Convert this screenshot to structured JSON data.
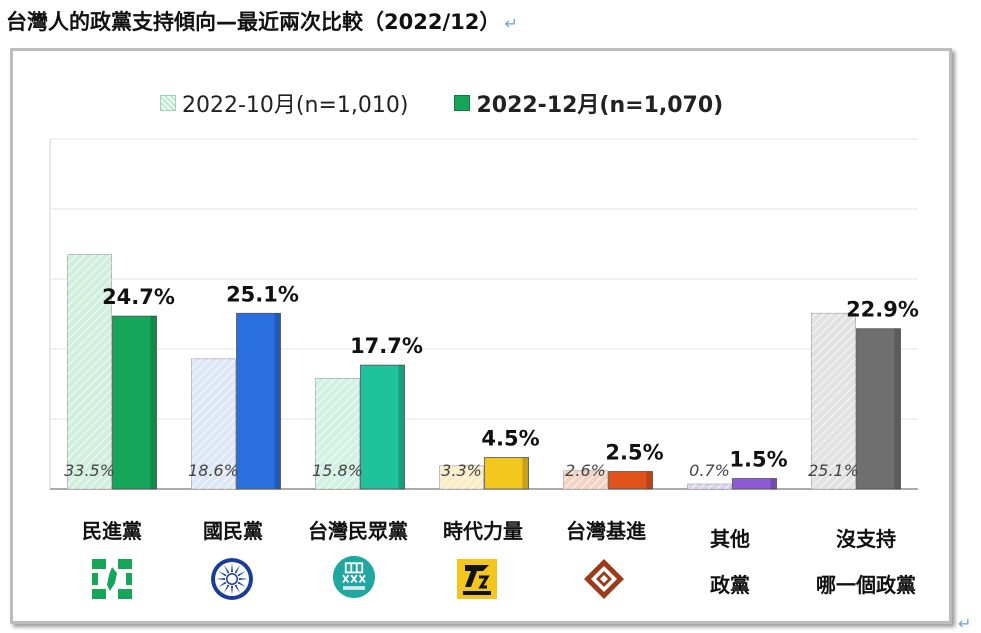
{
  "title": "台灣人的政黨支持傾向—最近兩次比較（2022/12）",
  "title_mark": "↵",
  "corner_mark": "↵",
  "chart_data": {
    "type": "bar",
    "title": "台灣人的政黨支持傾向—最近兩次比較（2022/12）",
    "xlabel": "",
    "ylabel": "",
    "ylim": [
      0,
      50
    ],
    "grid": true,
    "legend_position": "top",
    "categories": [
      "民進黨",
      "國民黨",
      "台灣民眾黨",
      "時代力量",
      "台灣基進",
      "其他政黨",
      "沒支持哪一個政黨"
    ],
    "category_lines": [
      [
        "民進黨"
      ],
      [
        "國民黨"
      ],
      [
        "台灣民眾黨"
      ],
      [
        "時代力量"
      ],
      [
        "台灣基進"
      ],
      [
        "其他",
        "政黨"
      ],
      [
        "沒支持",
        "哪一個政黨"
      ]
    ],
    "series": [
      {
        "name": "2022-10月(n=1,010)",
        "values": [
          33.5,
          18.6,
          15.8,
          3.3,
          2.6,
          0.7,
          25.1
        ],
        "labels": [
          "33.5%",
          "18.6%",
          "15.8%",
          "3.3%",
          "2.6%",
          "0.7%",
          "25.1%"
        ]
      },
      {
        "name": "2022-12月(n=1,070)",
        "values": [
          24.7,
          25.1,
          17.7,
          4.5,
          2.5,
          1.5,
          22.9
        ],
        "labels": [
          "24.7%",
          "25.1%",
          "17.7%",
          "4.5%",
          "2.5%",
          "1.5%",
          "22.9%"
        ]
      }
    ],
    "colors": {
      "oct": [
        "#b9e6cc",
        "#c9d9ee",
        "#b7ead6",
        "#f6e4a6",
        "#f0bba3",
        "#cdb8ec",
        "#d2d2d2"
      ],
      "dec": [
        "#16a65a",
        "#2a6fe0",
        "#1fc29a",
        "#f3c61e",
        "#e0541c",
        "#8e5bd6",
        "#6f6f6f"
      ]
    }
  },
  "legend": {
    "oct_label": "2022-10月(n=1,010)",
    "dec_label": "2022-12月(n=1,070)"
  },
  "logos": {
    "dpp_icon": "dpp-logo-icon",
    "kmt_icon": "kmt-sun-logo-icon",
    "tpp_icon": "tpp-logo-icon",
    "npp_icon": "npp-logo-icon",
    "tsp_icon": "tsp-logo-icon"
  }
}
